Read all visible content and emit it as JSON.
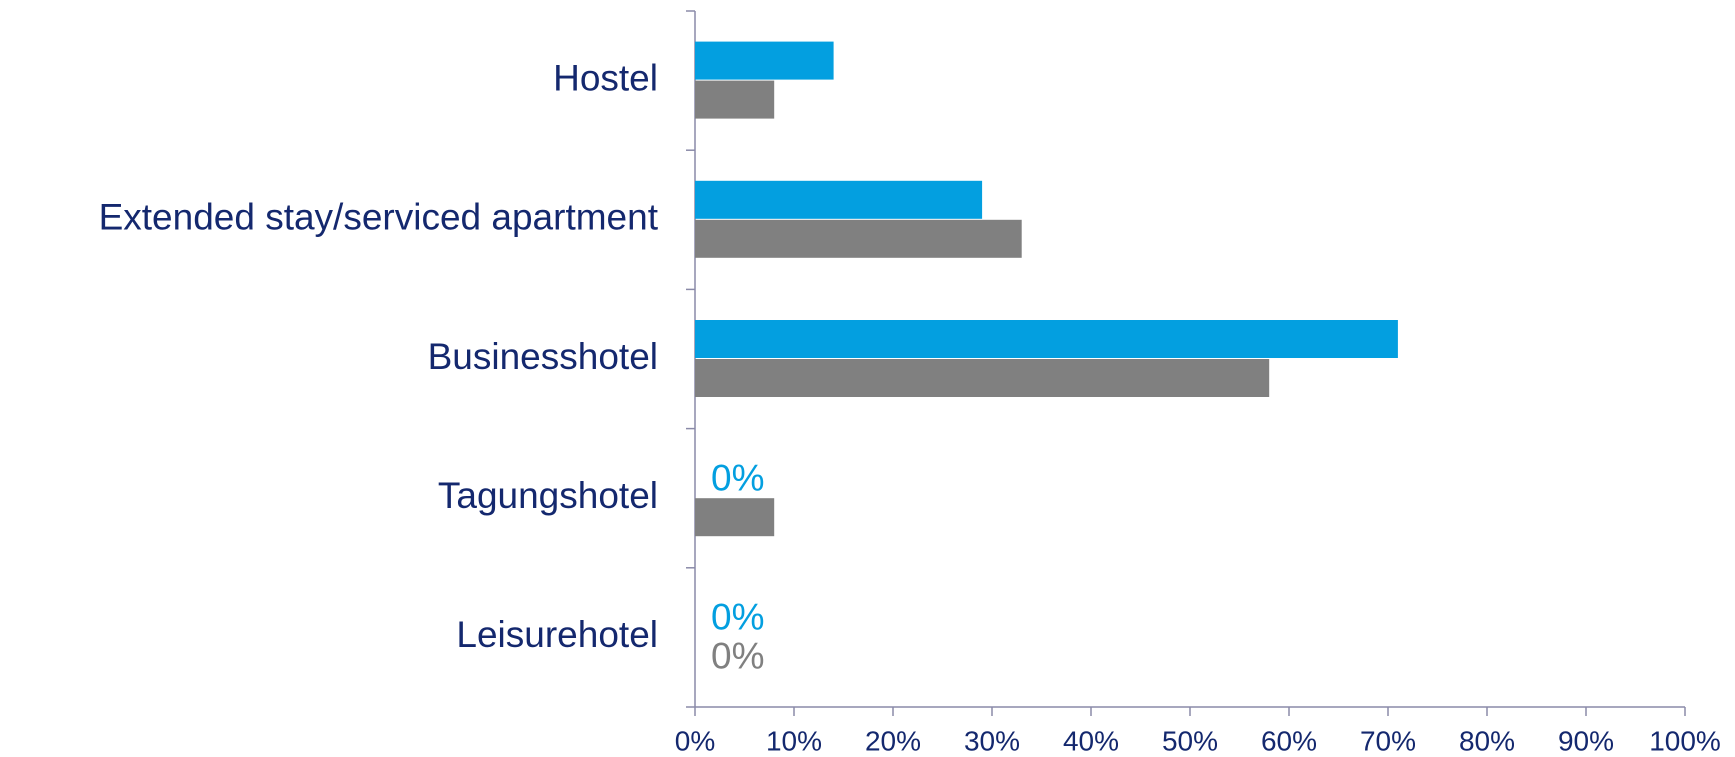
{
  "chart_data": {
    "type": "hbar",
    "categories": [
      "Hostel",
      "Extended stay/serviced apartment",
      "Businesshotel",
      "Tagungshotel",
      "Leisurehotel"
    ],
    "series": [
      {
        "color": "#039fe0",
        "values": [
          14,
          29,
          71,
          0,
          0
        ],
        "value_labels": [
          null,
          null,
          null,
          "0%",
          "0%"
        ]
      },
      {
        "color": "#808080",
        "values": [
          8,
          33,
          58,
          8,
          0
        ],
        "value_labels": [
          null,
          null,
          null,
          null,
          "0%"
        ]
      }
    ],
    "xlim": [
      0,
      100
    ],
    "xticks": [
      {
        "value": 0,
        "label": "0%"
      },
      {
        "value": 10,
        "label": "10%"
      },
      {
        "value": 20,
        "label": "20%"
      },
      {
        "value": 30,
        "label": "30%"
      },
      {
        "value": 40,
        "label": "40%"
      },
      {
        "value": 50,
        "label": "50%"
      },
      {
        "value": 60,
        "label": "60%"
      },
      {
        "value": 70,
        "label": "70%"
      },
      {
        "value": 80,
        "label": "80%"
      },
      {
        "value": 90,
        "label": "90%"
      },
      {
        "value": 100,
        "label": "100%"
      }
    ],
    "label_color": "#14286e",
    "axis_color": "#8a8aa8"
  }
}
